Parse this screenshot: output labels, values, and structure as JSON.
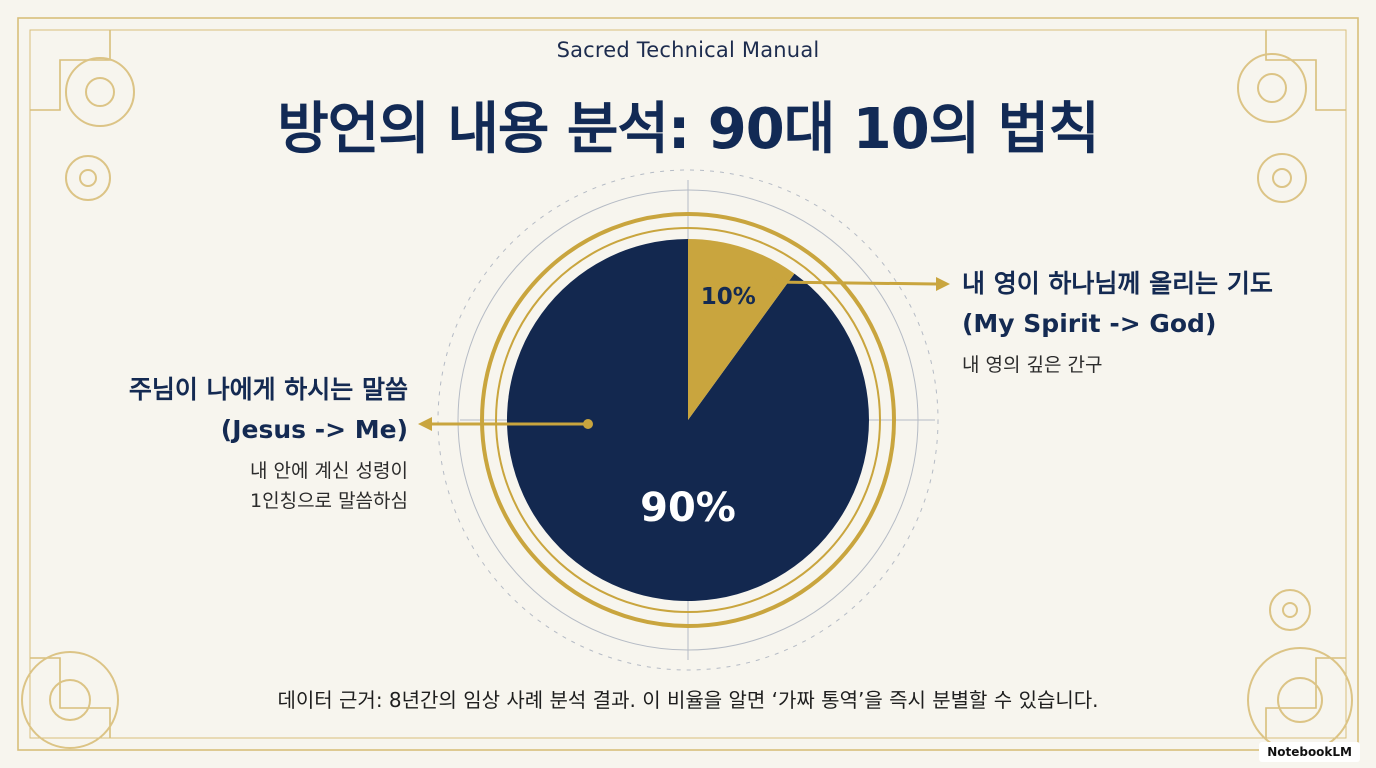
{
  "header": {
    "subtitle": "Sacred Technical Manual",
    "title": "방언의 내용 분석: 90대 10의 법칙"
  },
  "chart_data": {
    "type": "pie",
    "slices": [
      {
        "label": "주님이 나에게 하시는 말씀",
        "sublabel": "(Jesus -> Me)",
        "description": [
          "내 안에 계신 성령이",
          "1인칭으로 말씀하심"
        ],
        "value": 90,
        "value_label": "90%",
        "color": "#13284f"
      },
      {
        "label": "내 영이 하나님께 올리는 기도",
        "sublabel": "(My Spirit -> God)",
        "description": [
          "내 영의 깊은 간구"
        ],
        "value": 10,
        "value_label": "10%",
        "color": "#c9a53e"
      }
    ]
  },
  "footnote": "데이터 근거: 8년간의 임상 사례 분석 결과. 이 비율을 알면 ‘가짜 통역’을 즉시 분별할 수 있습니다.",
  "brand": "NotebookLM",
  "colors": {
    "navy": "#13284f",
    "gold": "#c9a53e",
    "background": "#f7f5ee"
  }
}
